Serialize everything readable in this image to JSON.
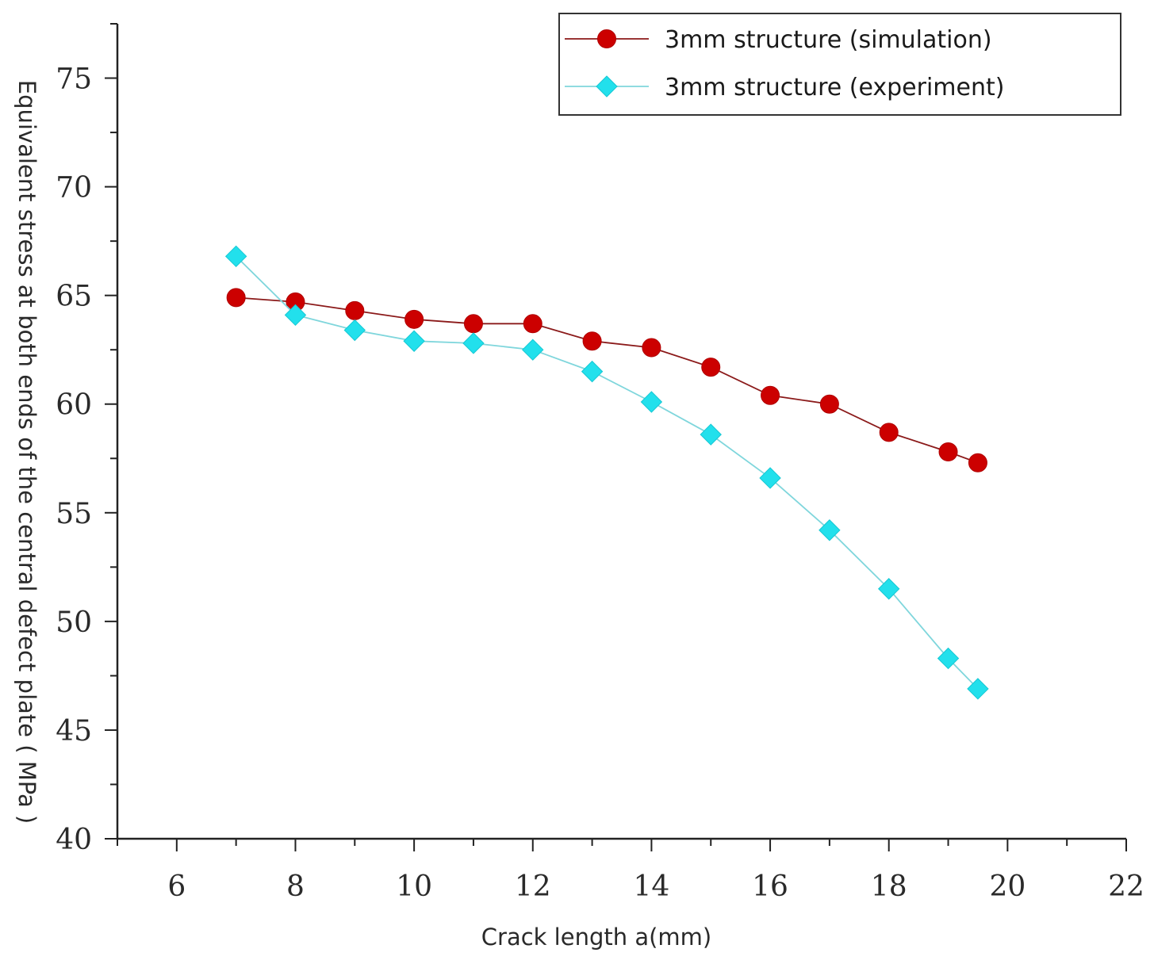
{
  "chart_data": {
    "type": "line",
    "xlabel": "Crack length a(mm)",
    "ylabel": "Equivalent stress at both ends of the central defect plate ( MPa )",
    "xlim": [
      5,
      22
    ],
    "ylim": [
      40,
      77.5
    ],
    "xticks": [
      6,
      8,
      10,
      12,
      14,
      16,
      18,
      20,
      22
    ],
    "yticks": [
      40,
      45,
      50,
      55,
      60,
      65,
      70,
      75
    ],
    "grid": false,
    "legend_position": "top-right",
    "series": [
      {
        "name": "3mm structure (simulation)",
        "color": "#cc0000",
        "line_color": "#8b1a1a",
        "marker": "circle",
        "x": [
          7,
          8,
          9,
          10,
          11,
          12,
          13,
          14,
          15,
          16,
          17,
          18,
          19,
          19.5
        ],
        "y": [
          64.9,
          64.7,
          64.3,
          63.9,
          63.7,
          63.7,
          62.9,
          62.6,
          61.7,
          60.4,
          60.0,
          58.7,
          57.8,
          57.3
        ]
      },
      {
        "name": "3mm structure (experiment)",
        "color": "#22e0ec",
        "line_color": "#7fd6dc",
        "marker": "diamond",
        "x": [
          7,
          8,
          9,
          10,
          11,
          12,
          13,
          14,
          15,
          16,
          17,
          18,
          19,
          19.5
        ],
        "y": [
          66.8,
          64.1,
          63.4,
          62.9,
          62.8,
          62.5,
          61.5,
          60.1,
          58.6,
          56.6,
          54.2,
          51.5,
          48.3,
          46.9
        ]
      }
    ]
  }
}
